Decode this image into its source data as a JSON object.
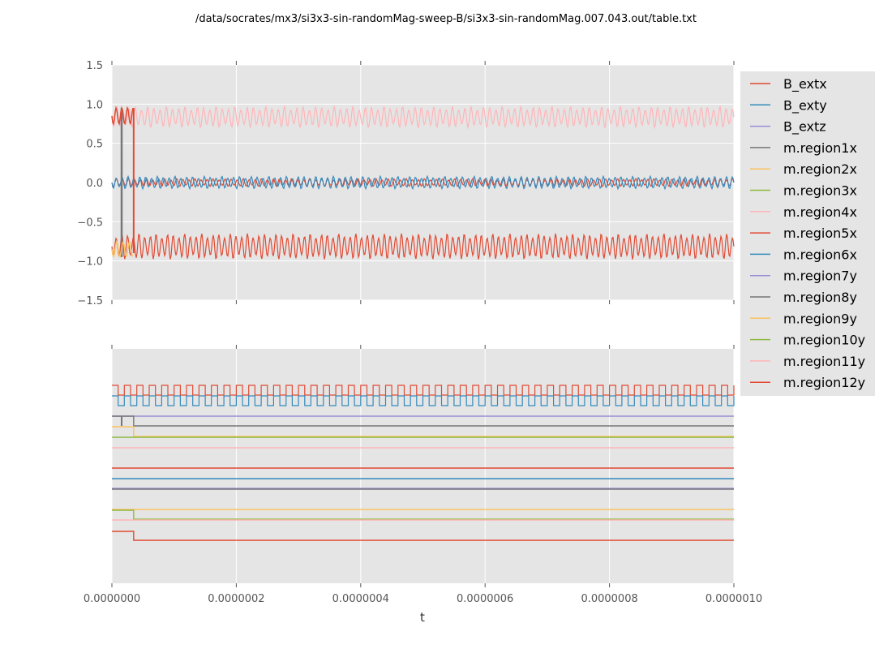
{
  "chart_data": {
    "type": "line",
    "title": "/data/socrates/mx3/si3x3-sin-randomMag-sweep-B/si3x3-sin-randomMag.007.043.out/table.txt",
    "xlabel": "t",
    "xlim": [
      0.0,
      1e-06
    ],
    "x_ticks": [
      "0.0000000",
      "0.0000002",
      "0.0000004",
      "0.0000006",
      "0.0000008",
      "0.0000010"
    ],
    "grid": true,
    "legend_position": "right",
    "series": [
      {
        "name": "B_extx",
        "color": "#e24a33"
      },
      {
        "name": "B_exty",
        "color": "#348abd"
      },
      {
        "name": "B_extz",
        "color": "#988ed5"
      },
      {
        "name": "m.region1x",
        "color": "#777777"
      },
      {
        "name": "m.region2x",
        "color": "#fbc15e"
      },
      {
        "name": "m.region3x",
        "color": "#8eba42"
      },
      {
        "name": "m.region4x",
        "color": "#ffb5b8"
      },
      {
        "name": "m.region5x",
        "color": "#e24a33"
      },
      {
        "name": "m.region6x",
        "color": "#348abd"
      },
      {
        "name": "m.region7y",
        "color": "#988ed5"
      },
      {
        "name": "m.region8y",
        "color": "#777777"
      },
      {
        "name": "m.region9y",
        "color": "#fbc15e"
      },
      {
        "name": "m.region10y",
        "color": "#8eba42"
      },
      {
        "name": "m.region11y",
        "color": "#ffb5b8"
      },
      {
        "name": "m.region12y",
        "color": "#e24a33"
      }
    ],
    "panels": [
      {
        "name": "top",
        "ylim": [
          -1.5,
          1.5
        ],
        "y_ticks": [
          "1.5",
          "1.0",
          "0.5",
          "0.0",
          "−0.5",
          "−1.0",
          "−1.5"
        ],
        "bands": [
          {
            "series": "m.region4x",
            "low": 0.7,
            "high": 0.97
          },
          {
            "series": "B_extx",
            "low": -0.05,
            "high": 0.05
          },
          {
            "series": "B_exty",
            "low": -0.08,
            "high": 0.08
          },
          {
            "series": "m.region5x",
            "low": -0.98,
            "high": -0.65
          }
        ]
      },
      {
        "name": "bottom",
        "ylim": null,
        "y_ticks": []
      }
    ]
  }
}
